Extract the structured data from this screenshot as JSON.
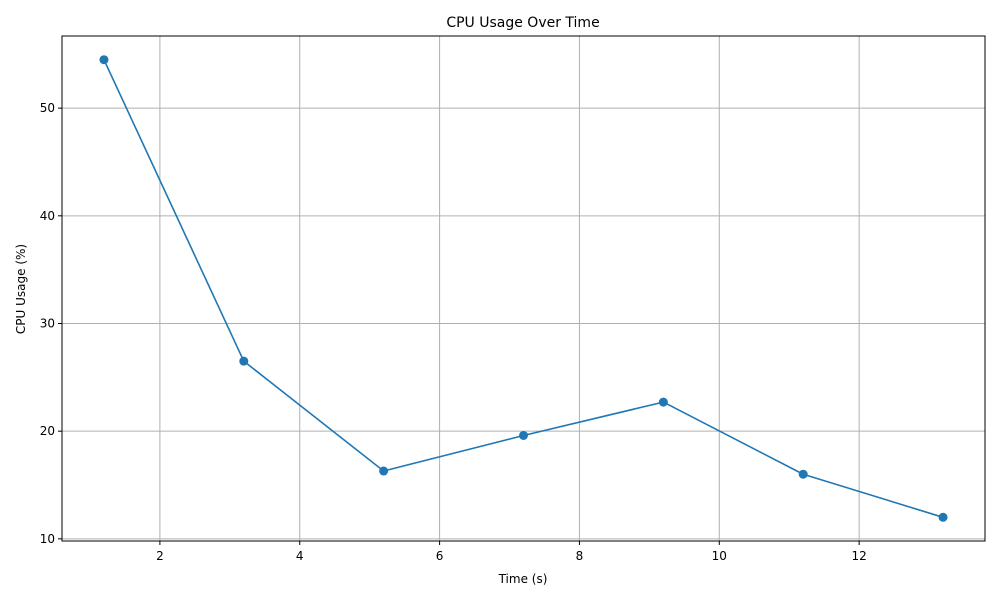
{
  "chart_data": {
    "type": "line",
    "title": "CPU Usage Over Time",
    "xlabel": "Time (s)",
    "ylabel": "CPU Usage (%)",
    "x": [
      1.2,
      3.2,
      5.2,
      7.2,
      9.2,
      11.2,
      13.2
    ],
    "series": [
      {
        "values": [
          54.5,
          26.5,
          16.3,
          19.6,
          22.7,
          16.0,
          12.0
        ]
      }
    ],
    "xlim": [
      0.6,
      13.8
    ],
    "ylim": [
      9.8,
      56.7
    ],
    "xticks": [
      2,
      4,
      6,
      8,
      10,
      12
    ],
    "yticks": [
      10,
      20,
      30,
      40,
      50
    ],
    "grid": true,
    "marker": "circle",
    "colors": {
      "line": "#1f77b4",
      "grid": "#b0b0b0",
      "axis": "#000000"
    }
  }
}
